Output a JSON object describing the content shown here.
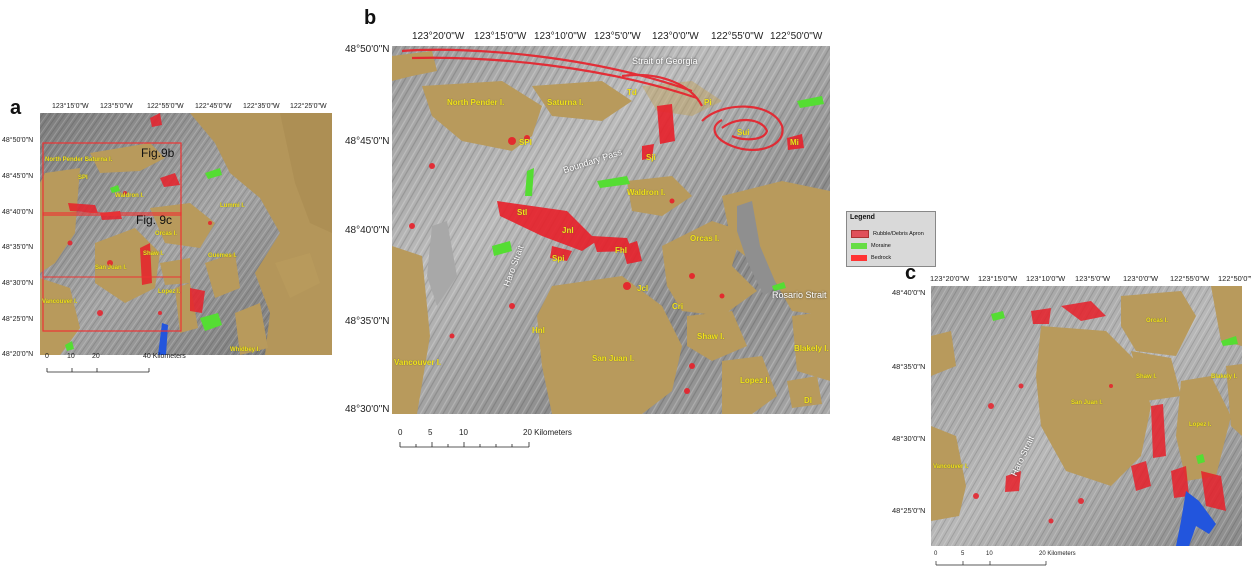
{
  "panels": {
    "a": {
      "letter": "a",
      "top_ticks": [
        "123°15'0\"W",
        "123°5'0\"W",
        "122°55'0\"W",
        "122°45'0\"W",
        "122°35'0\"W",
        "122°25'0\"W"
      ],
      "left_ticks": [
        "48°50'0\"N",
        "48°45'0\"N",
        "48°40'0\"N",
        "48°35'0\"N",
        "48°30'0\"N",
        "48°25'0\"N",
        "48°20'0\"N"
      ],
      "fig_b": "Fig.9b",
      "fig_c": "Fig. 9c",
      "scale": {
        "ticks": [
          "0",
          "10",
          "20",
          "40 Kilometers"
        ]
      },
      "labels": [
        "North Pender I.",
        "Saturna I.",
        "SPI",
        "Waldron I.",
        "Orcas I.",
        "Shaw I.",
        "San Juan I.",
        "Lopez I.",
        "Vancouver I.",
        "Lummi I.",
        "Guemes I.",
        "Whidbey I."
      ]
    },
    "b": {
      "letter": "b",
      "top_ticks": [
        "123°20'0\"W",
        "123°15'0\"W",
        "123°10'0\"W",
        "123°5'0\"W",
        "123°0'0\"W",
        "122°55'0\"W",
        "122°50'0\"W"
      ],
      "left_ticks": [
        "48°50'0\"N",
        "48°45'0\"N",
        "48°40'0\"N",
        "48°35'0\"N",
        "48°30'0\"N"
      ],
      "water": [
        "Strait of Georgia",
        "Boundary Pass",
        "Haro Strait",
        "Rosario Strait"
      ],
      "labels": [
        "North Pender I.",
        "Saturna I.",
        "Td",
        "Pi",
        "Sui",
        "Mi",
        "SPI",
        "Sji",
        "Waldron I.",
        "Stl",
        "Jnl",
        "Fhl",
        "Spi",
        "Orcas I.",
        "Jcl",
        "Cri",
        "Shaw I.",
        "San Juan I.",
        "Hnl",
        "Blakely I.",
        "Lopez I.",
        "Dl",
        "Vancouver I."
      ],
      "scale": {
        "ticks": [
          "0",
          "5",
          "10",
          "20 Kilometers"
        ]
      }
    },
    "c": {
      "letter": "c",
      "top_ticks": [
        "123°20'0\"W",
        "123°15'0\"W",
        "123°10'0\"W",
        "123°5'0\"W",
        "123°0'0\"W",
        "122°55'0\"W",
        "122°50'0\"W"
      ],
      "left_ticks": [
        "48°40'0\"N",
        "48°35'0\"N",
        "48°30'0\"N",
        "48°25'0\"N"
      ],
      "water": [
        "Haro Strait"
      ],
      "labels": [
        "Orcas I.",
        "Shaw I.",
        "San Juan I.",
        "Lopez I.",
        "Vancouver I.",
        "Blakely I."
      ],
      "scale": {
        "ticks": [
          "0",
          "5",
          "10",
          "20 Kilometers"
        ]
      }
    }
  },
  "legend": {
    "title": "Legend",
    "items": [
      {
        "label": "Rubble/Debris Apron",
        "color": "#e0505a"
      },
      {
        "label": "Moraine",
        "color": "#66dd44"
      },
      {
        "label": "Bedrock",
        "color": "#ff3333"
      }
    ]
  },
  "colors": {
    "land": "#b89a5c",
    "seafloor": "#8c8c8c",
    "bedrock": "#e8202a",
    "moraine": "#55dd33",
    "river": "#2255dd",
    "frame": "#ee3333"
  }
}
